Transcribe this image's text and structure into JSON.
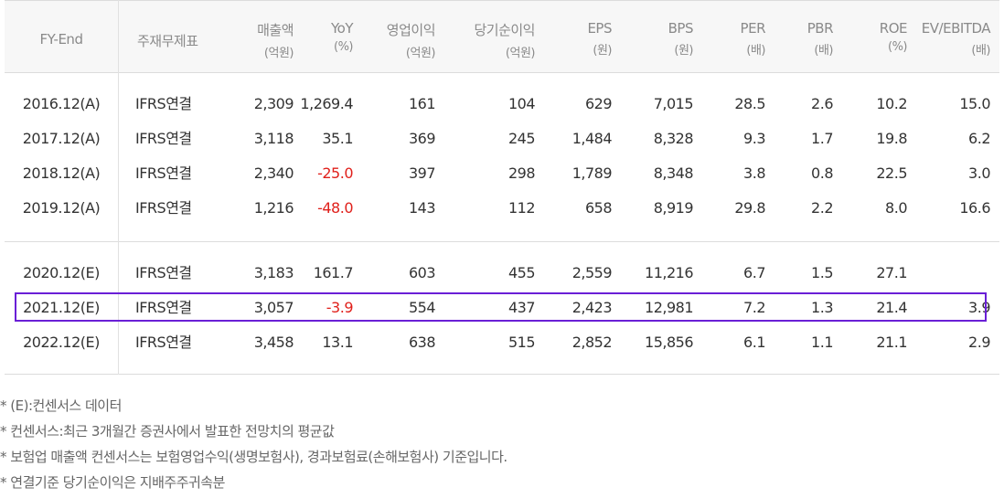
{
  "header": {
    "fy_end": "FY-End",
    "statement": "주재무제표",
    "columns": [
      {
        "label": "매출액",
        "unit": "(억원)"
      },
      {
        "label": "YoY",
        "unit": "(%)"
      },
      {
        "label": "영업이익",
        "unit": "(억원)"
      },
      {
        "label": "당기순이익",
        "unit": "(억원)"
      },
      {
        "label": "EPS",
        "unit": "(원)"
      },
      {
        "label": "BPS",
        "unit": "(원)"
      },
      {
        "label": "PER",
        "unit": "(배)"
      },
      {
        "label": "PBR",
        "unit": "(배)"
      },
      {
        "label": "ROE",
        "unit": "(%)"
      },
      {
        "label": "EV/EBITDA",
        "unit": "(배)"
      }
    ]
  },
  "rows": [
    {
      "fy": "2016.12(A)",
      "stmt": "IFRS연결",
      "sales": "2,309",
      "yoy": "1,269.4",
      "yoy_negative": false,
      "op": "161",
      "net": "104",
      "eps": "629",
      "bps": "7,015",
      "per": "28.5",
      "pbr": "2.6",
      "roe": "10.2",
      "ev": "15.0"
    },
    {
      "fy": "2017.12(A)",
      "stmt": "IFRS연결",
      "sales": "3,118",
      "yoy": "35.1",
      "yoy_negative": false,
      "op": "369",
      "net": "245",
      "eps": "1,484",
      "bps": "8,328",
      "per": "9.3",
      "pbr": "1.7",
      "roe": "19.8",
      "ev": "6.2"
    },
    {
      "fy": "2018.12(A)",
      "stmt": "IFRS연결",
      "sales": "2,340",
      "yoy": "-25.0",
      "yoy_negative": true,
      "op": "397",
      "net": "298",
      "eps": "1,789",
      "bps": "8,348",
      "per": "3.8",
      "pbr": "0.8",
      "roe": "22.5",
      "ev": "3.0"
    },
    {
      "fy": "2019.12(A)",
      "stmt": "IFRS연결",
      "sales": "1,216",
      "yoy": "-48.0",
      "yoy_negative": true,
      "op": "143",
      "net": "112",
      "eps": "658",
      "bps": "8,919",
      "per": "29.8",
      "pbr": "2.2",
      "roe": "8.0",
      "ev": "16.6"
    },
    {
      "fy": "2020.12(E)",
      "stmt": "IFRS연결",
      "sales": "3,183",
      "yoy": "161.7",
      "yoy_negative": false,
      "op": "603",
      "net": "455",
      "eps": "2,559",
      "bps": "11,216",
      "per": "6.7",
      "pbr": "1.5",
      "roe": "27.1",
      "ev": ""
    },
    {
      "fy": "2021.12(E)",
      "stmt": "IFRS연결",
      "sales": "3,057",
      "yoy": "-3.9",
      "yoy_negative": true,
      "op": "554",
      "net": "437",
      "eps": "2,423",
      "bps": "12,981",
      "per": "7.2",
      "pbr": "1.3",
      "roe": "21.4",
      "ev": "3.9"
    },
    {
      "fy": "2022.12(E)",
      "stmt": "IFRS연결",
      "sales": "3,458",
      "yoy": "13.1",
      "yoy_negative": false,
      "op": "638",
      "net": "515",
      "eps": "2,852",
      "bps": "15,856",
      "per": "6.1",
      "pbr": "1.1",
      "roe": "21.1",
      "ev": "2.9"
    }
  ],
  "highlight_color": "#6a1fd6",
  "negative_color": "#e0201b",
  "notes": [
    "* (E):컨센서스 데이터",
    "* 컨센서스:최근 3개월간 증권사에서 발표한 전망치의 평균값",
    "* 보험업 매출액 컨센서스는 보험영업수익(생명보험사), 경과보험료(손해보험사) 기준입니다.",
    "* 연결기준 당기순이익은 지배주주귀속분"
  ]
}
